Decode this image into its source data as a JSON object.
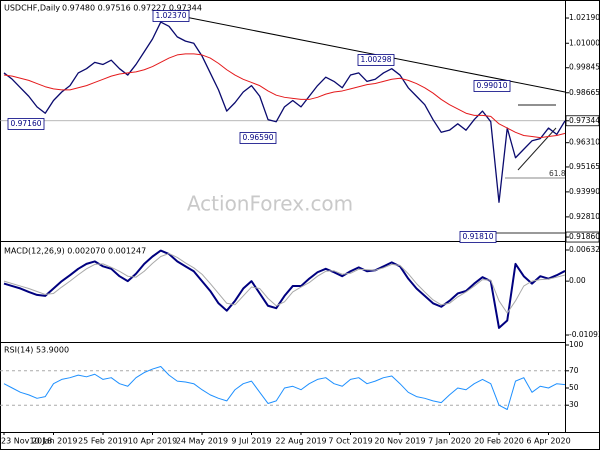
{
  "chart_data": [
    {
      "type": "line",
      "title": "USDCHF,Daily",
      "subtitle": "0.97480 0.97516 0.97227 0.97344",
      "categories": [
        "23 Nov 2018",
        null,
        null,
        null,
        null,
        null,
        "10 Jan 2019",
        null,
        null,
        null,
        null,
        null,
        "25 Feb 2019",
        null,
        null,
        null,
        null,
        null,
        "10 Apr 2019",
        null,
        null,
        null,
        null,
        null,
        "24 May 2019",
        null,
        null,
        null,
        null,
        null,
        "9 Jul 2019",
        null,
        null,
        null,
        null,
        null,
        "22 Aug 2019",
        null,
        null,
        null,
        null,
        null,
        "7 Oct 2019",
        null,
        null,
        null,
        null,
        null,
        "20 Nov 2019",
        null,
        null,
        null,
        null,
        null,
        "7 Jan 2020",
        null,
        null,
        null,
        null,
        null,
        "20 Feb 2020",
        null,
        null,
        null,
        null,
        null,
        "6 Apr 2020",
        null,
        null
      ],
      "series": [
        {
          "color": "#0a0a6e",
          "values": [
            0.996,
            0.993,
            0.989,
            0.985,
            0.98,
            0.977,
            0.983,
            0.987,
            0.99,
            0.996,
            0.998,
            1.001,
            1.0,
            1.002,
            0.998,
            0.995,
            1.0,
            1.006,
            1.012,
            1.02,
            1.018,
            1.013,
            1.011,
            1.01,
            1.004,
            0.996,
            0.988,
            0.978,
            0.982,
            0.987,
            0.99,
            0.985,
            0.974,
            0.973,
            0.98,
            0.983,
            0.98,
            0.985,
            0.99,
            0.994,
            0.992,
            0.989,
            0.995,
            0.996,
            0.992,
            0.993,
            0.996,
            0.998,
            0.995,
            0.989,
            0.985,
            0.981,
            0.974,
            0.968,
            0.969,
            0.972,
            0.969,
            0.974,
            0.978,
            0.973,
            0.935,
            0.97,
            0.956,
            0.96,
            0.964,
            0.965,
            0.97,
            0.967,
            0.9734
          ]
        },
        {
          "color": "#e41a1c",
          "values": [
            0.995,
            0.9945,
            0.9935,
            0.9925,
            0.991,
            0.9895,
            0.9885,
            0.988,
            0.988,
            0.989,
            0.99,
            0.9915,
            0.993,
            0.9945,
            0.9955,
            0.996,
            0.9965,
            0.9975,
            0.999,
            1.001,
            1.003,
            1.0045,
            1.005,
            1.005,
            1.0045,
            1.003,
            1.0005,
            0.9975,
            0.995,
            0.993,
            0.9915,
            0.99,
            0.9875,
            0.9855,
            0.9845,
            0.984,
            0.9835,
            0.9835,
            0.9845,
            0.986,
            0.987,
            0.9875,
            0.9885,
            0.9895,
            0.9905,
            0.991,
            0.992,
            0.993,
            0.9935,
            0.9925,
            0.991,
            0.989,
            0.9865,
            0.9835,
            0.981,
            0.979,
            0.977,
            0.976,
            0.976,
            0.9755,
            0.972,
            0.97,
            0.968,
            0.9665,
            0.966,
            0.9655,
            0.966,
            0.9665,
            0.9675
          ]
        }
      ],
      "ylim": [
        0.9172,
        1.0304
      ],
      "yticks": [
        {
          "value": 1.0219,
          "label": "1.02190"
        },
        {
          "value": 1.01,
          "label": "1.01000"
        },
        0.99845,
        0.98665,
        0.97344,
        {
          "value": 0.9631,
          "label": "0.96310"
        },
        0.95165,
        {
          "value": 0.9399,
          "label": "0.93990"
        },
        {
          "value": 0.9281,
          "label": "0.92810"
        },
        {
          "value": 0.9186,
          "label": "0.91860"
        }
      ],
      "annotations": [
        "1.02370",
        "1.00298",
        "0.99010",
        "0.97160",
        "0.96590",
        "0.91810",
        "61.8"
      ],
      "watermark": "ActionForex.com"
    },
    {
      "type": "line",
      "title": "MACD(12,26,9) 0.002070 0.001247",
      "series": [
        {
          "color": "#00007f",
          "values": [
            -0.0005,
            -0.001,
            -0.0015,
            -0.0022,
            -0.0028,
            -0.003,
            -0.0015,
            0.0,
            0.0012,
            0.0025,
            0.0035,
            0.004,
            0.003,
            0.0025,
            0.001,
            0.0,
            0.0015,
            0.0035,
            0.005,
            0.0062,
            0.0055,
            0.004,
            0.003,
            0.002,
            0.0,
            -0.002,
            -0.0045,
            -0.006,
            -0.004,
            -0.0015,
            0.0,
            -0.0025,
            -0.005,
            -0.0055,
            -0.003,
            -0.001,
            -0.001,
            0.0005,
            0.0018,
            0.0025,
            0.0018,
            0.001,
            0.002,
            0.0028,
            0.002,
            0.0022,
            0.003,
            0.0038,
            0.003,
            0.0005,
            -0.0015,
            -0.003,
            -0.0045,
            -0.0052,
            -0.004,
            -0.0025,
            -0.002,
            -0.0005,
            0.0008,
            0.0,
            -0.0095,
            -0.008,
            0.0035,
            0.001,
            -0.0005,
            0.001,
            0.0005,
            0.0012,
            0.00207
          ]
        },
        {
          "color": "#a9a9a9",
          "values": [
            0.0,
            -0.0005,
            -0.001,
            -0.0015,
            -0.0021,
            -0.0027,
            -0.0025,
            -0.0012,
            0.0,
            0.0013,
            0.0025,
            0.0034,
            0.0035,
            0.0028,
            0.002,
            0.001,
            0.0008,
            0.002,
            0.0036,
            0.005,
            0.0056,
            0.0048,
            0.0037,
            0.0027,
            0.0014,
            -0.0005,
            -0.0025,
            -0.0045,
            -0.0048,
            -0.003,
            -0.0012,
            -0.0015,
            -0.0035,
            -0.005,
            -0.0042,
            -0.0022,
            -0.0012,
            -0.0003,
            0.001,
            0.002,
            0.0021,
            0.0014,
            0.0016,
            0.0024,
            0.0023,
            0.0022,
            0.0027,
            0.0034,
            0.0032,
            0.0015,
            -0.0005,
            -0.0022,
            -0.0038,
            -0.0048,
            -0.0045,
            -0.0032,
            -0.0022,
            -0.001,
            0.0003,
            0.0002,
            -0.004,
            -0.0065,
            -0.004,
            -0.001,
            0.0,
            0.0003,
            0.0004,
            0.0008,
            0.001247
          ]
        }
      ],
      "ylim": [
        -0.01195,
        0.00774
      ],
      "yticks": [
        0.006321,
        {
          "value": 0,
          "label": "0.00"
        },
        -0.010939
      ]
    },
    {
      "type": "line",
      "title": "RSI(14) 53.9000",
      "series": [
        {
          "color": "#1e90ff",
          "values": [
            55,
            50,
            45,
            42,
            38,
            40,
            55,
            60,
            62,
            65,
            63,
            66,
            60,
            62,
            55,
            52,
            62,
            68,
            72,
            75,
            65,
            58,
            57,
            55,
            48,
            42,
            38,
            35,
            48,
            55,
            58,
            45,
            32,
            35,
            50,
            52,
            48,
            55,
            60,
            62,
            55,
            52,
            60,
            62,
            55,
            58,
            62,
            64,
            55,
            45,
            40,
            38,
            35,
            33,
            42,
            50,
            48,
            55,
            60,
            55,
            30,
            25,
            58,
            62,
            45,
            52,
            50,
            55,
            53.9
          ]
        }
      ],
      "ylim": [
        0,
        100
      ],
      "yticks": [
        100,
        70,
        50,
        30
      ]
    }
  ]
}
